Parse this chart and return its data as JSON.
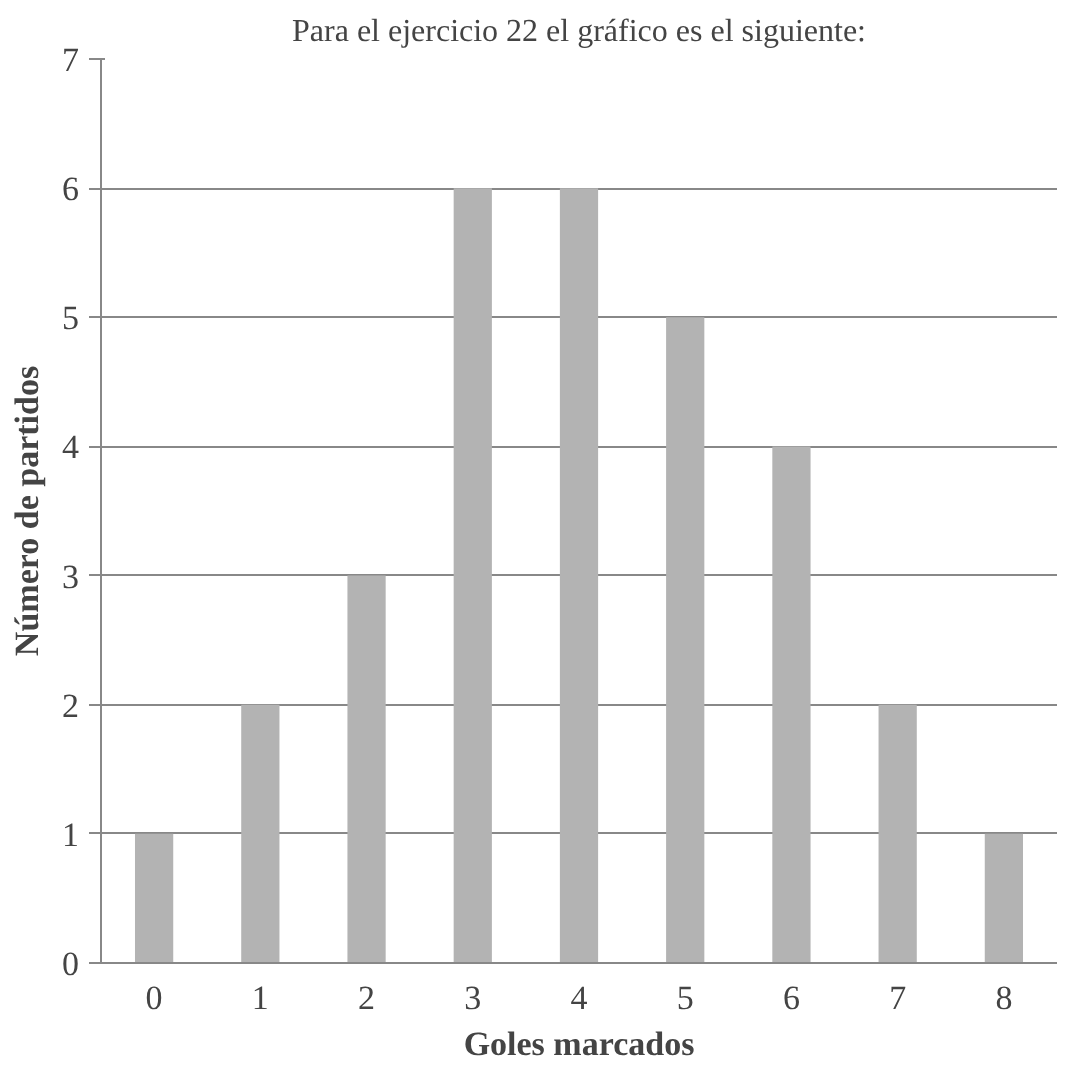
{
  "chart_data": {
    "type": "bar",
    "title": "Para el ejercicio 22 el gráfico es el siguiente:",
    "xlabel": "Goles marcados",
    "ylabel": "Número de partidos",
    "categories": [
      "0",
      "1",
      "2",
      "3",
      "4",
      "5",
      "6",
      "7",
      "8"
    ],
    "values": [
      1,
      2,
      3,
      6,
      6,
      5,
      4,
      2,
      1
    ],
    "color": "#b3b3b3",
    "ylim": [
      0,
      7
    ],
    "yticks": [
      0,
      1,
      2,
      3,
      4,
      5,
      6,
      7
    ],
    "grid": "y"
  }
}
